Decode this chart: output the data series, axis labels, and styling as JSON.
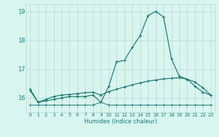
{
  "xlabel": "Humidex (Indice chaleur)",
  "x": [
    0,
    1,
    2,
    3,
    4,
    5,
    6,
    7,
    8,
    9,
    10,
    11,
    12,
    13,
    14,
    15,
    16,
    17,
    18,
    19,
    20,
    21,
    22,
    23
  ],
  "line1": [
    16.3,
    15.85,
    15.9,
    15.95,
    16.0,
    16.05,
    16.05,
    16.05,
    16.1,
    15.85,
    16.4,
    17.25,
    17.3,
    17.75,
    18.15,
    18.85,
    19.0,
    18.8,
    17.35,
    16.75,
    16.65,
    16.4,
    16.2,
    16.1
  ],
  "line2": [
    16.25,
    15.85,
    15.95,
    16.05,
    16.1,
    16.12,
    16.15,
    16.18,
    16.2,
    16.1,
    16.22,
    16.3,
    16.38,
    16.45,
    16.52,
    16.58,
    16.62,
    16.66,
    16.68,
    16.7,
    16.65,
    16.55,
    16.35,
    16.1
  ],
  "line3": [
    15.75,
    15.75,
    15.75,
    15.75,
    15.75,
    15.75,
    15.75,
    15.75,
    15.75,
    15.85,
    15.75,
    15.75,
    15.75,
    15.75,
    15.75,
    15.75,
    15.75,
    15.75,
    15.75,
    15.75,
    15.75,
    15.75,
    15.75,
    15.75
  ],
  "line_color": "#1a7a6e",
  "bg_color": "#d8f5f0",
  "grid_color": "#c0ddd8",
  "ylim": [
    15.5,
    19.25
  ],
  "yticks": [
    16,
    17,
    18,
    19
  ],
  "xticks": [
    0,
    1,
    2,
    3,
    4,
    5,
    6,
    7,
    8,
    9,
    10,
    11,
    12,
    13,
    14,
    15,
    16,
    17,
    18,
    19,
    20,
    21,
    22,
    23
  ]
}
